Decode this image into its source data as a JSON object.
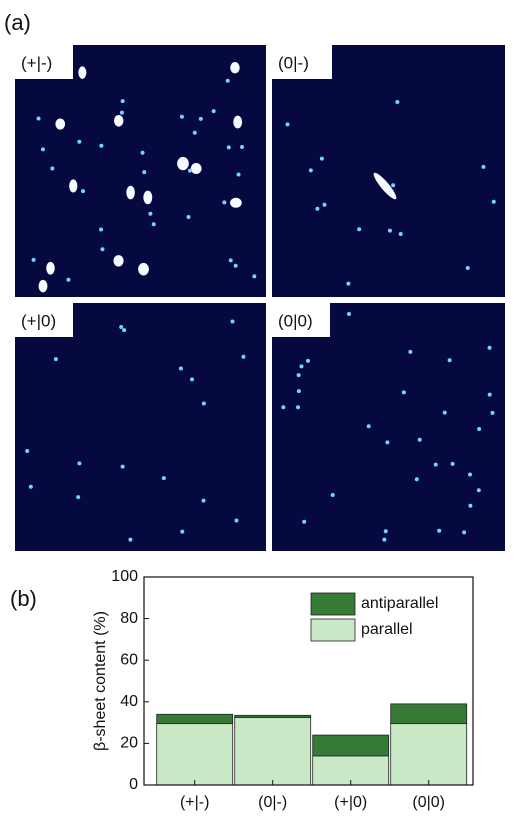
{
  "figure": {
    "panel_a_label": "(a)",
    "image_labels": [
      "(+|-)",
      "(0|-)",
      "(+|0)",
      "(0|0)"
    ],
    "panel_b_label": "(b)"
  },
  "chart_data": {
    "type": "stacked-bar",
    "y_label": "β-sheet content (%)",
    "categories": [
      "(+|-)",
      "(0|-)",
      "(+|0)",
      "(0|0)"
    ],
    "series": [
      {
        "name": "parallel",
        "color": "#c9e8c6",
        "values": [
          29.5,
          32.5,
          14,
          29.5
        ]
      },
      {
        "name": "antiparallel",
        "color": "#357a35",
        "values": [
          4.5,
          1,
          10,
          9.5
        ]
      }
    ],
    "ylim": [
      0,
      100
    ],
    "yticks": [
      0,
      20,
      40,
      60,
      80,
      100
    ],
    "legend": "top-right"
  }
}
